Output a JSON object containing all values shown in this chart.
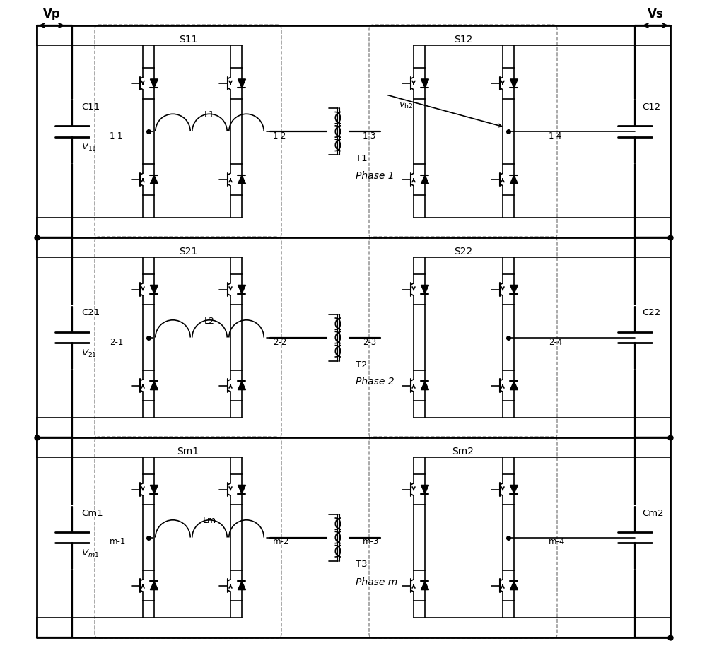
{
  "bg_color": "#ffffff",
  "line_color": "#000000",
  "phases": [
    {
      "left_label": "S11",
      "right_label": "S12",
      "ind_label": "L1",
      "trans_label": "T1",
      "phase_label": "Phase 1",
      "cap_left": "C11",
      "cap_right": "C12",
      "v_left": "V_{11}",
      "nodes": [
        "1-1",
        "1-2",
        "1-3",
        "1-4"
      ],
      "vhx": true
    },
    {
      "left_label": "S21",
      "right_label": "S22",
      "ind_label": "L2",
      "trans_label": "T2",
      "phase_label": "Phase 2",
      "cap_left": "C21",
      "cap_right": "C22",
      "v_left": "V_{21}",
      "nodes": [
        "2-1",
        "2-2",
        "2-3",
        "2-4"
      ],
      "vhx": false
    },
    {
      "left_label": "Sm1",
      "right_label": "Sm2",
      "ind_label": "Lm",
      "trans_label": "T3",
      "phase_label": "Phase m",
      "cap_left": "Cm1",
      "cap_right": "Cm2",
      "v_left": "V_{m1}",
      "nodes": [
        "m-1",
        "m-2",
        "m-3",
        "m-4"
      ],
      "vhx": false
    }
  ]
}
